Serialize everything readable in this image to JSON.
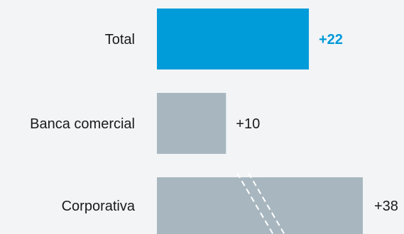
{
  "chart_data": {
    "type": "bar",
    "orientation": "horizontal",
    "categories": [
      "Total",
      "Banca comercial",
      "Corporativa"
    ],
    "values": [
      22,
      10,
      38
    ],
    "value_labels": [
      "+22",
      "+10",
      "+38"
    ],
    "highlight_index": 0,
    "axis_break_on": "Corporativa",
    "colors": {
      "highlight": "#009bd9",
      "default": "#a8b7bf",
      "highlight_label": "#0099d8",
      "background": "#f2f4f6"
    },
    "title": "",
    "xlabel": "",
    "ylabel": "",
    "grid": false,
    "legend": "none"
  }
}
